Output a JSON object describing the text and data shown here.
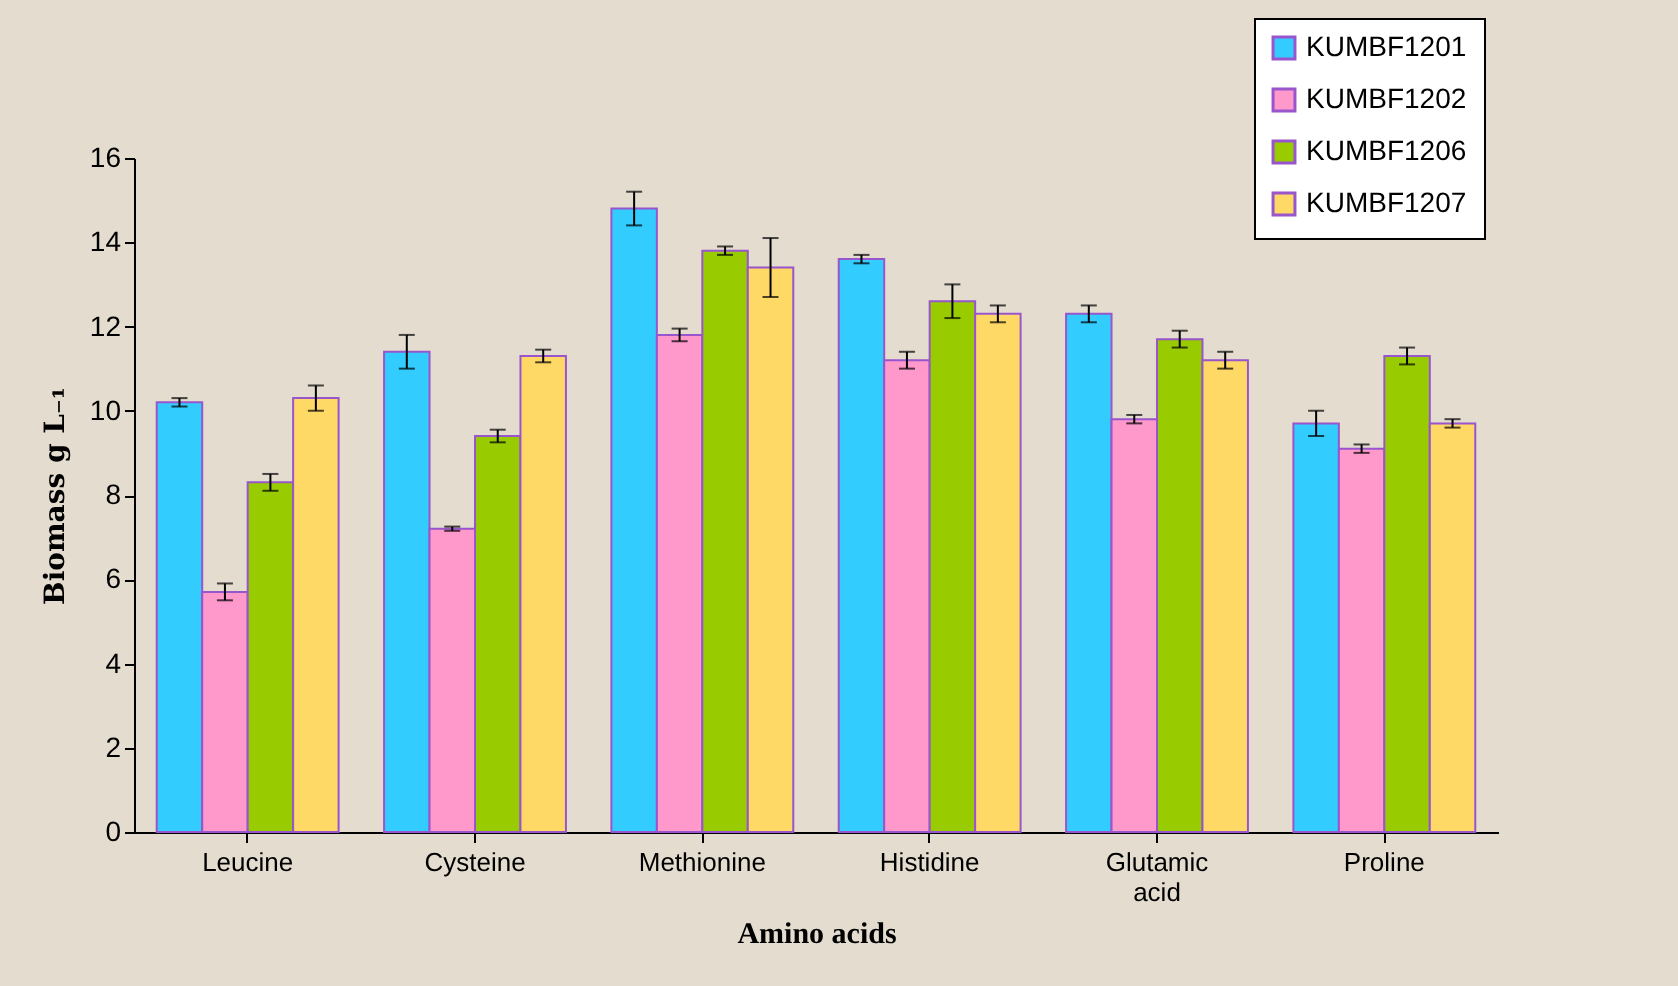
{
  "chart_data": {
    "type": "bar",
    "xlabel": "Amino acids",
    "ylabel": "Biomass g L₋₁",
    "categories": [
      "Leucine",
      "Cysteine",
      "Methionine",
      "Histidine",
      "Glutamic acid",
      "Proline"
    ],
    "series": [
      {
        "name": "KUMBF1201",
        "color": "#33ccff",
        "values": [
          10.2,
          11.4,
          14.8,
          13.6,
          12.3,
          9.7
        ],
        "errors": [
          0.1,
          0.4,
          0.4,
          0.1,
          0.2,
          0.3
        ]
      },
      {
        "name": "KUMBF1202",
        "color": "#ff99cc",
        "values": [
          5.7,
          7.2,
          11.8,
          11.2,
          9.8,
          9.1
        ],
        "errors": [
          0.2,
          0.05,
          0.15,
          0.2,
          0.1,
          0.1
        ]
      },
      {
        "name": "KUMBF1206",
        "color": "#99cc00",
        "values": [
          8.3,
          9.4,
          13.8,
          12.6,
          11.7,
          11.3
        ],
        "errors": [
          0.2,
          0.15,
          0.1,
          0.4,
          0.2,
          0.2
        ]
      },
      {
        "name": "KUMBF1207",
        "color": "#ffd966",
        "values": [
          10.3,
          11.3,
          13.4,
          12.3,
          11.2,
          9.7
        ],
        "errors": [
          0.3,
          0.15,
          0.7,
          0.2,
          0.2,
          0.1
        ]
      }
    ],
    "ylim": [
      0,
      16
    ],
    "yticks": [
      0,
      2,
      4,
      6,
      8,
      10,
      12,
      14,
      16
    ],
    "grid": false,
    "legend": "top right"
  }
}
